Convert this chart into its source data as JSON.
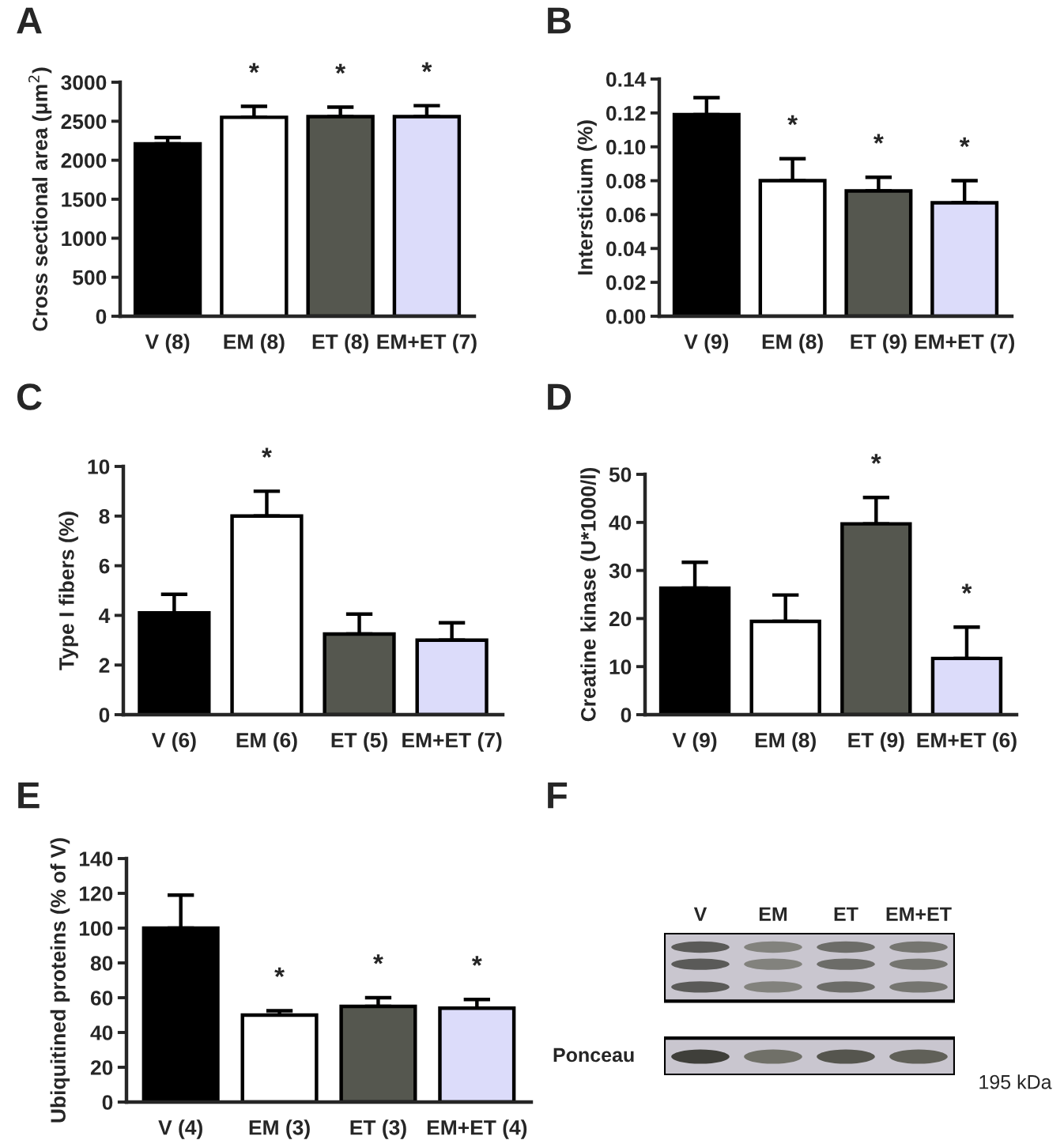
{
  "chart_data": [
    {
      "type": "bar",
      "title": "A",
      "ylabel": "Cross sectional area (μm$^{2}$)",
      "categories": [
        "V (8)",
        "EM (8)",
        "ET (8)",
        "EM+ET (7)"
      ],
      "values": [
        2210,
        2550,
        2560,
        2560
      ],
      "errors": [
        [
          2210,
          2290
        ],
        [
          2550,
          2690
        ],
        [
          2560,
          2680
        ],
        [
          2560,
          2700
        ]
      ],
      "colors": [
        "#000000",
        "#ffffff",
        "#55574f",
        "#dcdcfa"
      ],
      "ylim": [
        0,
        3000
      ],
      "yticks": [
        0,
        500,
        1000,
        1500,
        2000,
        2500,
        3000
      ],
      "value_labels": [
        null,
        "*",
        "*",
        "*"
      ]
    },
    {
      "type": "bar",
      "title": "B",
      "ylabel": "Intersticium (%)",
      "categories": [
        "V (9)",
        "EM (8)",
        "ET (9)",
        "EM+ET (7)"
      ],
      "values": [
        0.119,
        0.08,
        0.074,
        0.067
      ],
      "errors": [
        [
          0.119,
          0.129
        ],
        [
          0.08,
          0.093
        ],
        [
          0.074,
          0.082
        ],
        [
          0.067,
          0.08
        ]
      ],
      "colors": [
        "#000000",
        "#ffffff",
        "#55574f",
        "#dcdcfa"
      ],
      "ylim": [
        0,
        0.14
      ],
      "yticks": [
        {
          "value": 0,
          "label": "0.00"
        },
        {
          "value": 0.02,
          "label": "0.02"
        },
        {
          "value": 0.04,
          "label": "0.04"
        },
        {
          "value": 0.06,
          "label": "0.06"
        },
        {
          "value": 0.08,
          "label": "0.08"
        },
        {
          "value": 0.1,
          "label": "0.10"
        },
        {
          "value": 0.12,
          "label": "0.12"
        },
        {
          "value": 0.14,
          "label": "0.14"
        }
      ],
      "value_labels": [
        null,
        "*",
        "*",
        "*"
      ]
    },
    {
      "type": "bar",
      "title": "C",
      "ylabel": "Type I fibers (%)",
      "categories": [
        "V (6)",
        "EM (6)",
        "ET (5)",
        "EM+ET (7)"
      ],
      "values": [
        4.1,
        8.0,
        3.25,
        3.0
      ],
      "errors": [
        [
          4.1,
          4.85
        ],
        [
          8.0,
          9.0
        ],
        [
          3.25,
          4.05
        ],
        [
          3.0,
          3.7
        ]
      ],
      "colors": [
        "#000000",
        "#ffffff",
        "#55574f",
        "#dcdcfa"
      ],
      "ylim": [
        0,
        10
      ],
      "yticks": [
        0,
        2,
        4,
        6,
        8,
        10
      ],
      "value_labels": [
        null,
        "*",
        null,
        null
      ]
    },
    {
      "type": "bar",
      "title": "D",
      "ylabel": "Creatine kinase (U*1000/l)",
      "categories": [
        "V (9)",
        "EM (8)",
        "ET (9)",
        "EM+ET (6)"
      ],
      "values": [
        26.3,
        19.4,
        39.7,
        11.7
      ],
      "errors": [
        [
          26.3,
          31.7
        ],
        [
          19.4,
          24.9
        ],
        [
          39.7,
          45.2
        ],
        [
          11.7,
          18.2
        ]
      ],
      "colors": [
        "#000000",
        "#ffffff",
        "#55574f",
        "#dcdcfa"
      ],
      "ylim": [
        0,
        50
      ],
      "yticks": [
        0,
        10,
        20,
        30,
        40,
        50
      ],
      "value_labels": [
        null,
        null,
        "*",
        "*"
      ]
    },
    {
      "type": "bar",
      "title": "E",
      "ylabel": "Ubiquitined proteins (% of V)",
      "categories": [
        "V (4)",
        "EM (3)",
        "ET (3)",
        "EM+ET (4)"
      ],
      "values": [
        100,
        50,
        55,
        54
      ],
      "errors": [
        [
          100,
          119
        ],
        [
          50,
          52.5
        ],
        [
          55,
          60
        ],
        [
          54,
          59
        ]
      ],
      "colors": [
        "#000000",
        "#ffffff",
        "#55574f",
        "#dcdcfa"
      ],
      "ylim": [
        0,
        140
      ],
      "yticks": [
        0,
        20,
        40,
        60,
        80,
        100,
        120,
        140
      ],
      "value_labels": [
        null,
        "*",
        "*",
        "*"
      ]
    },
    {
      "type": "other",
      "title": "F",
      "categories": [
        "V",
        "EM",
        "ET",
        "EM+ET"
      ],
      "annotations": [
        "Ponceau",
        "195 kDa"
      ]
    }
  ]
}
